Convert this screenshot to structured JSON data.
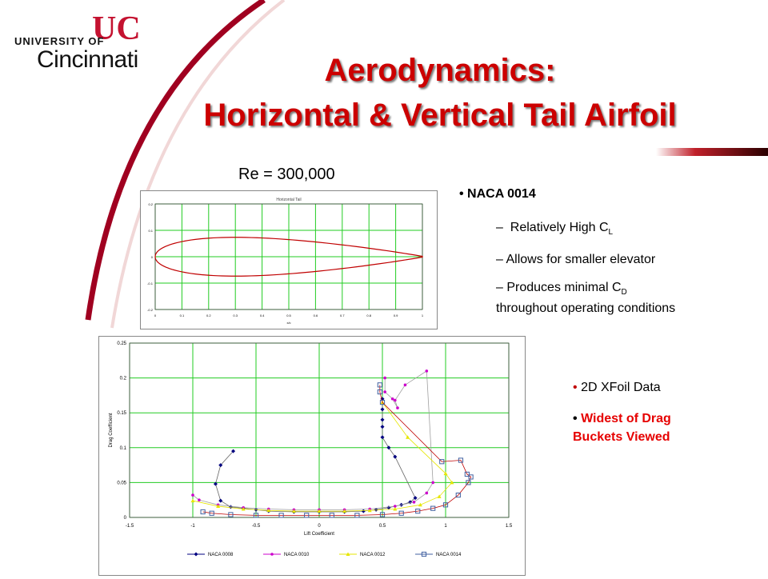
{
  "logo": {
    "top_text": "UNIVERSITY OF",
    "bottom_text": "Cincinnati",
    "mark": "UC"
  },
  "title": {
    "line1": "Aerodynamics:",
    "line2": "Horizontal & Vertical Tail Airfoil"
  },
  "re_label": "Re = 300,000",
  "bullets": {
    "b1": "NACA 0014",
    "s1_pre": "Relatively High C",
    "s1_sub": "L",
    "s2": "Allows for smaller elevator",
    "s3_pre": "Produces minimal C",
    "s3_sub": "D",
    "s3_post": "throughout operating conditions",
    "b2": "2D XFoil Data",
    "b3_line1": "Widest of Drag",
    "b3_line2": "Buckets Viewed"
  },
  "colors": {
    "title": "#cc0000",
    "accent": "#a00020",
    "grid": "#22cc22",
    "airfoil": "#c00000",
    "red_bullet": "#e60000"
  },
  "chart_data": [
    {
      "type": "line",
      "title": "Horizontal Tail",
      "xlabel": "x/c",
      "ylabel": "",
      "xlim": [
        0,
        1
      ],
      "ylim": [
        -0.2,
        0.2
      ],
      "x_ticks": [
        "0",
        "0.1",
        "0.2",
        "0.3",
        "0.4",
        "0.5",
        "0.6",
        "0.7",
        "0.8",
        "0.9",
        "1"
      ],
      "y_ticks": [
        "0.2",
        "0.1",
        "0",
        "-0.1",
        "-0.2"
      ],
      "series": [
        {
          "name": "NACA 0014",
          "thickness": 0.14
        }
      ]
    },
    {
      "type": "line",
      "title": "",
      "xlabel": "Lift Coefficient",
      "ylabel": "Drag Coefficient",
      "xlim": [
        -1.5,
        1.5
      ],
      "ylim": [
        0,
        0.25
      ],
      "x_ticks": [
        "-1.5",
        "-1",
        "-0.5",
        "0",
        "0.5",
        "1",
        "1.5"
      ],
      "y_ticks": [
        "0",
        "0.05",
        "0.1",
        "0.15",
        "0.2",
        "0.25"
      ],
      "legend_position": "bottom",
      "series": [
        {
          "name": "NACA 0008",
          "color": "#000080",
          "marker": "diamond",
          "x": [
            -0.68,
            -0.78,
            -0.82,
            -0.78,
            -0.7,
            -0.6,
            -0.5,
            -0.4,
            -0.2,
            0,
            0.2,
            0.35,
            0.45,
            0.55,
            0.65,
            0.72,
            0.76,
            0.6,
            0.55,
            0.5,
            0.5,
            0.5,
            0.5,
            0.5
          ],
          "y": [
            0.095,
            0.075,
            0.048,
            0.024,
            0.015,
            0.013,
            0.011,
            0.009,
            0.008,
            0.008,
            0.008,
            0.009,
            0.011,
            0.014,
            0.018,
            0.022,
            0.028,
            0.087,
            0.1,
            0.115,
            0.13,
            0.14,
            0.155,
            0.17
          ]
        },
        {
          "name": "NACA 0010",
          "color": "#cc00cc",
          "marker": "star",
          "x": [
            -1.0,
            -0.95,
            -0.8,
            -0.6,
            -0.4,
            -0.2,
            0,
            0.2,
            0.4,
            0.6,
            0.75,
            0.85,
            0.9,
            0.85,
            0.68,
            0.6,
            0.62,
            0.58,
            0.52,
            0.52
          ],
          "y": [
            0.032,
            0.025,
            0.018,
            0.014,
            0.012,
            0.011,
            0.011,
            0.011,
            0.012,
            0.016,
            0.022,
            0.035,
            0.05,
            0.21,
            0.19,
            0.168,
            0.157,
            0.17,
            0.18,
            0.2
          ]
        },
        {
          "name": "NACA 0012",
          "color": "#e6e600",
          "marker": "triangle",
          "x": [
            -1.0,
            -0.8,
            -0.6,
            -0.4,
            -0.2,
            0,
            0.2,
            0.4,
            0.6,
            0.8,
            0.95,
            1.05,
            1.0,
            0.7,
            0.5
          ],
          "y": [
            0.024,
            0.016,
            0.012,
            0.01,
            0.009,
            0.009,
            0.009,
            0.01,
            0.012,
            0.018,
            0.03,
            0.05,
            0.063,
            0.115,
            0.165
          ]
        },
        {
          "name": "NACA 0014",
          "color": "#4060a0",
          "marker": "square",
          "x": [
            -0.92,
            -0.85,
            -0.7,
            -0.5,
            -0.3,
            -0.1,
            0.1,
            0.3,
            0.5,
            0.65,
            0.78,
            0.9,
            1.0,
            1.1,
            1.18,
            1.2,
            1.17,
            1.12,
            0.97,
            0.5,
            0.48,
            0.48
          ],
          "y": [
            0.008,
            0.006,
            0.004,
            0.003,
            0.003,
            0.003,
            0.003,
            0.003,
            0.004,
            0.006,
            0.009,
            0.013,
            0.018,
            0.032,
            0.05,
            0.058,
            0.062,
            0.082,
            0.08,
            0.165,
            0.18,
            0.19
          ]
        }
      ]
    }
  ]
}
